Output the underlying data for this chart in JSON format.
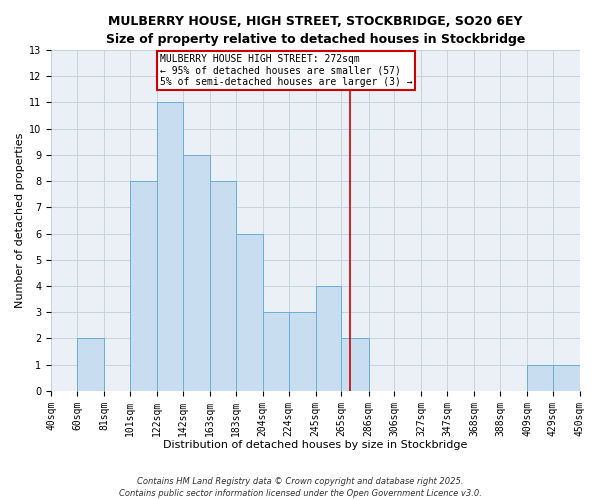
{
  "title": "MULBERRY HOUSE, HIGH STREET, STOCKBRIDGE, SO20 6EY",
  "subtitle": "Size of property relative to detached houses in Stockbridge",
  "xlabel": "Distribution of detached houses by size in Stockbridge",
  "ylabel": "Number of detached properties",
  "bin_edges": [
    40,
    60,
    81,
    101,
    122,
    142,
    163,
    183,
    204,
    224,
    245,
    265,
    286,
    306,
    327,
    347,
    368,
    388,
    409,
    429,
    450
  ],
  "counts": [
    0,
    2,
    0,
    8,
    11,
    9,
    8,
    6,
    3,
    3,
    4,
    2,
    0,
    0,
    0,
    0,
    0,
    0,
    1,
    1
  ],
  "bar_color": "#c8ddef",
  "bar_edge_color": "#6aaed6",
  "property_size": 272,
  "vline_color": "#cc0000",
  "annotation_line1": "MULBERRY HOUSE HIGH STREET: 272sqm",
  "annotation_line2": "← 95% of detached houses are smaller (57)",
  "annotation_line3": "5% of semi-detached houses are larger (3) →",
  "annotation_box_edge_color": "#cc0000",
  "ylim": [
    0,
    13
  ],
  "yticks": [
    0,
    1,
    2,
    3,
    4,
    5,
    6,
    7,
    8,
    9,
    10,
    11,
    12,
    13
  ],
  "tick_labels": [
    "40sqm",
    "60sqm",
    "81sqm",
    "101sqm",
    "122sqm",
    "142sqm",
    "163sqm",
    "183sqm",
    "204sqm",
    "224sqm",
    "245sqm",
    "265sqm",
    "286sqm",
    "306sqm",
    "327sqm",
    "347sqm",
    "368sqm",
    "388sqm",
    "409sqm",
    "429sqm",
    "450sqm"
  ],
  "footer_line1": "Contains HM Land Registry data © Crown copyright and database right 2025.",
  "footer_line2": "Contains public sector information licensed under the Open Government Licence v3.0.",
  "bg_color": "#eaf0f6",
  "grid_color": "#c0cfdc",
  "title_fontsize": 9,
  "subtitle_fontsize": 8.5,
  "axis_label_fontsize": 8,
  "tick_fontsize": 7,
  "annot_fontsize": 7,
  "footer_fontsize": 6
}
